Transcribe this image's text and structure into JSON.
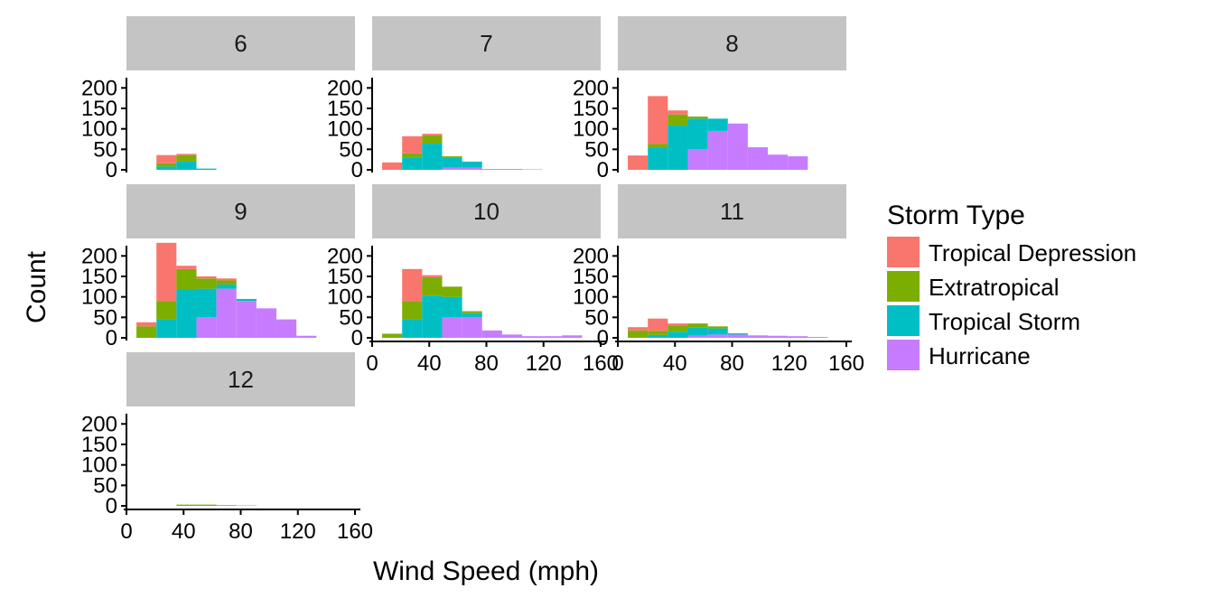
{
  "chart_data": {
    "type": "bar",
    "subtype": "stacked-histogram-facets",
    "xlabel": "Wind Speed (mph)",
    "ylabel": "Count",
    "xlim": [
      0,
      160
    ],
    "ylim": [
      0,
      225
    ],
    "x_ticks": [
      0,
      40,
      80,
      120,
      160
    ],
    "y_ticks": [
      0,
      50,
      100,
      150,
      200
    ],
    "bin_width": 14,
    "bin_starts": [
      7,
      21,
      35,
      49,
      63,
      77,
      91,
      105,
      119,
      133,
      147
    ],
    "stack_order": [
      "Hurricane",
      "Tropical Storm",
      "Extratropical",
      "Tropical Depression"
    ],
    "grid": false,
    "legend": {
      "title": "Storm Type",
      "position": "right",
      "items": [
        {
          "label": "Tropical Depression",
          "color": "#F8766D"
        },
        {
          "label": "Extratropical",
          "color": "#7CAE00"
        },
        {
          "label": "Tropical Storm",
          "color": "#00BFC4"
        },
        {
          "label": "Hurricane",
          "color": "#C77CFF"
        }
      ]
    },
    "facets": [
      {
        "label": "6",
        "show_x_axis": false,
        "series": {
          "Tropical Depression": [
            0,
            20,
            3,
            0,
            0,
            0,
            0,
            0,
            0,
            0,
            0
          ],
          "Extratropical": [
            0,
            8,
            16,
            0,
            0,
            0,
            0,
            0,
            0,
            0,
            0
          ],
          "Tropical Storm": [
            0,
            8,
            20,
            3,
            0,
            0,
            0,
            0,
            0,
            0,
            0
          ],
          "Hurricane": [
            0,
            0,
            0,
            0,
            0,
            0,
            0,
            0,
            0,
            0,
            0
          ]
        }
      },
      {
        "label": "7",
        "show_x_axis": false,
        "series": {
          "Tropical Depression": [
            18,
            42,
            4,
            0,
            0,
            0,
            0,
            0,
            0,
            0,
            0
          ],
          "Extratropical": [
            0,
            10,
            20,
            3,
            0,
            0,
            0,
            0,
            0,
            0,
            0
          ],
          "Tropical Storm": [
            0,
            30,
            64,
            25,
            15,
            0,
            0,
            0,
            0,
            0,
            0
          ],
          "Hurricane": [
            0,
            0,
            0,
            5,
            5,
            2,
            2,
            1,
            0,
            0,
            0
          ]
        }
      },
      {
        "label": "8",
        "show_x_axis": false,
        "series": {
          "Tropical Depression": [
            35,
            117,
            10,
            0,
            0,
            0,
            0,
            0,
            0,
            0,
            0
          ],
          "Extratropical": [
            0,
            8,
            27,
            5,
            0,
            0,
            0,
            0,
            0,
            0,
            0
          ],
          "Tropical Storm": [
            0,
            55,
            108,
            75,
            30,
            0,
            0,
            0,
            0,
            0,
            0
          ],
          "Hurricane": [
            0,
            0,
            0,
            50,
            95,
            113,
            55,
            37,
            33,
            0,
            0
          ]
        }
      },
      {
        "label": "9",
        "show_x_axis": false,
        "series": {
          "Tropical Depression": [
            10,
            142,
            8,
            5,
            5,
            0,
            0,
            0,
            0,
            0,
            0
          ],
          "Extratropical": [
            28,
            45,
            50,
            25,
            10,
            0,
            0,
            0,
            0,
            0,
            0
          ],
          "Tropical Storm": [
            0,
            45,
            118,
            70,
            10,
            5,
            0,
            0,
            0,
            0,
            0
          ],
          "Hurricane": [
            0,
            0,
            0,
            50,
            120,
            90,
            72,
            45,
            5,
            0,
            0
          ]
        }
      },
      {
        "label": "10",
        "show_x_axis": true,
        "series": {
          "Tropical Depression": [
            0,
            78,
            5,
            0,
            0,
            0,
            0,
            0,
            0,
            0,
            0
          ],
          "Extratropical": [
            10,
            45,
            45,
            25,
            5,
            0,
            0,
            0,
            0,
            0,
            0
          ],
          "Tropical Storm": [
            0,
            45,
            103,
            50,
            10,
            0,
            0,
            0,
            0,
            0,
            0
          ],
          "Hurricane": [
            0,
            0,
            0,
            50,
            50,
            18,
            8,
            4,
            4,
            6,
            0
          ]
        }
      },
      {
        "label": "11",
        "show_x_axis": true,
        "series": {
          "Tropical Depression": [
            8,
            30,
            5,
            0,
            0,
            0,
            0,
            0,
            0,
            0,
            0
          ],
          "Extratropical": [
            18,
            10,
            15,
            10,
            5,
            0,
            0,
            0,
            0,
            0,
            0
          ],
          "Tropical Storm": [
            0,
            7,
            15,
            20,
            15,
            3,
            0,
            0,
            0,
            0,
            0
          ],
          "Hurricane": [
            0,
            0,
            0,
            5,
            8,
            8,
            6,
            5,
            4,
            2,
            0
          ]
        }
      },
      {
        "label": "12",
        "show_x_axis": true,
        "series": {
          "Tropical Depression": [
            0,
            0,
            0,
            0,
            0,
            0,
            0,
            0,
            0,
            0,
            0
          ],
          "Extratropical": [
            0,
            0,
            2,
            2,
            0,
            0,
            0,
            0,
            0,
            0,
            0
          ],
          "Tropical Storm": [
            0,
            0,
            1,
            1,
            0,
            0,
            0,
            0,
            0,
            0,
            0
          ],
          "Hurricane": [
            0,
            0,
            0,
            0,
            2,
            1,
            0,
            0,
            0,
            0,
            0
          ]
        }
      }
    ]
  }
}
